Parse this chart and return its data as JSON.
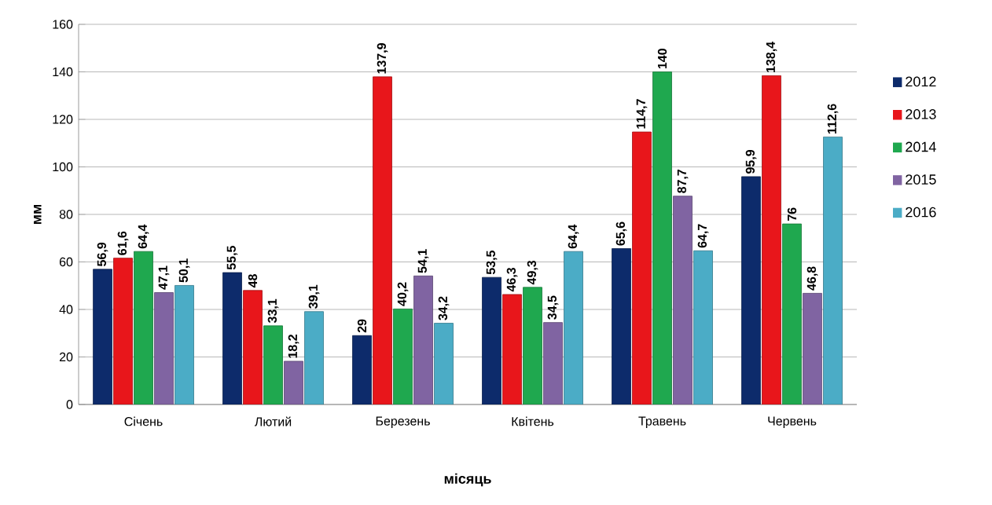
{
  "chart_data": {
    "type": "bar",
    "xlabel": "місяць",
    "ylabel": "мм",
    "categories": [
      "Січень",
      "Лютий",
      "Березень",
      "Квітень",
      "Травень",
      "Червень"
    ],
    "series": [
      {
        "name": "2012",
        "color": "#0d2b6b",
        "values": [
          56.9,
          55.5,
          29,
          53.5,
          65.6,
          95.9
        ],
        "value_labels": [
          "56,9",
          "55,5",
          "29",
          "53,5",
          "65,6",
          "95,9"
        ]
      },
      {
        "name": "2013",
        "color": "#e8161b",
        "values": [
          61.6,
          48,
          137.9,
          46.3,
          114.7,
          138.4
        ],
        "value_labels": [
          "61,6",
          "48",
          "137,9",
          "46,3",
          "114,7",
          "138,4"
        ]
      },
      {
        "name": "2014",
        "color": "#1fa84f",
        "values": [
          64.4,
          33.1,
          40.2,
          49.3,
          140,
          76
        ],
        "value_labels": [
          "64,4",
          "33,1",
          "40,2",
          "49,3",
          "140",
          "76"
        ]
      },
      {
        "name": "2015",
        "color": "#8064a2",
        "values": [
          47.1,
          18.2,
          54.1,
          34.5,
          87.7,
          46.8
        ],
        "value_labels": [
          "47,1",
          "18,2",
          "54,1",
          "34,5",
          "87,7",
          "46,8"
        ]
      },
      {
        "name": "2016",
        "color": "#4bacc6",
        "values": [
          50.1,
          39.1,
          34.2,
          64.4,
          64.7,
          112.6
        ],
        "value_labels": [
          "50,1",
          "39,1",
          "34,2",
          "64,4",
          "64,7",
          "112,6"
        ]
      }
    ],
    "ylim": [
      0,
      160
    ],
    "yticks": [
      0,
      20,
      40,
      60,
      80,
      100,
      120,
      140,
      160
    ],
    "grid": "y",
    "legend": "right"
  }
}
